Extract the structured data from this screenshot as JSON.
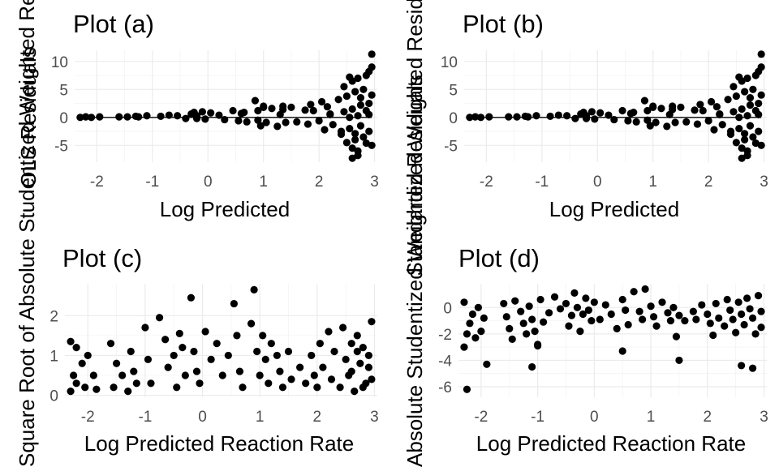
{
  "chart_data": [
    {
      "id": "a",
      "type": "scatter",
      "title": "Plot (a)",
      "xlabel": "Log Predicted",
      "ylabel": "OLS Residuals",
      "xlim": [
        -2.4,
        3.05
      ],
      "ylim": [
        -8,
        12
      ],
      "xticks": [
        -2,
        -1,
        0,
        1,
        2,
        3
      ],
      "yticks": [
        -5,
        0,
        5,
        10
      ],
      "hline": 0,
      "grid": true,
      "points_x": [
        -2.3,
        -2.2,
        -2.1,
        -1.95,
        -1.6,
        -1.45,
        -1.3,
        -1.25,
        -1.1,
        -0.85,
        -0.7,
        -0.55,
        -0.4,
        -0.3,
        -0.25,
        -0.2,
        -0.2,
        -0.1,
        -0.05,
        0.05,
        0.2,
        0.3,
        0.45,
        0.55,
        0.6,
        0.65,
        0.7,
        0.85,
        0.9,
        0.95,
        1.0,
        1.05,
        1.15,
        1.25,
        1.3,
        1.35,
        1.4,
        1.5,
        1.6,
        1.75,
        1.8,
        1.85,
        2.0,
        2.05,
        2.1,
        2.15,
        2.2,
        2.25,
        2.35,
        2.4,
        2.45,
        2.45,
        2.5,
        2.5,
        2.55,
        2.55,
        2.6,
        2.6,
        2.6,
        2.65,
        2.65,
        2.7,
        2.7,
        2.7,
        2.75,
        2.75,
        2.8,
        2.8,
        2.85,
        2.85,
        2.9,
        2.9,
        2.9,
        2.95,
        2.95,
        2.95,
        2.6,
        2.7,
        2.85,
        2.95,
        2.9,
        2.55,
        2.65,
        2.75,
        1.35,
        1.0,
        0.9,
        2.4,
        2.2,
        1.9
      ],
      "points_y": [
        0,
        0.1,
        0,
        0.1,
        0.1,
        0.1,
        0.2,
        0.1,
        0.3,
        0.2,
        0.4,
        0.3,
        -0.2,
        0.6,
        0.9,
        0.3,
        -0.2,
        1.0,
        -0.3,
        0.8,
        0.4,
        -0.4,
        1.2,
        -0.6,
        0.7,
        0.9,
        -0.8,
        3.0,
        1.2,
        -1.5,
        2.0,
        -0.9,
        1.6,
        -1.6,
        0.5,
        2.0,
        -0.9,
        1.8,
        -0.8,
        1.3,
        -1.2,
        2.3,
        -0.6,
        2.8,
        -2.2,
        1.9,
        0.5,
        -1.3,
        3.2,
        -3.0,
        5.5,
        1.0,
        -4.5,
        3.8,
        0.0,
        -2.0,
        6.5,
        1.5,
        -5.5,
        4.6,
        -2.9,
        7.0,
        0.3,
        -6.0,
        3.5,
        -1.5,
        5.0,
        -3.5,
        1.2,
        -4.6,
        8.2,
        2.5,
        -2.5,
        11.3,
        4.0,
        -5.0,
        -7.3,
        -6.8,
        7.5,
        9.0,
        0.5,
        7.2,
        -4.0,
        2.2,
        1.4,
        1.8,
        -0.5,
        -2.5,
        0.6,
        1.2
      ]
    },
    {
      "id": "b",
      "type": "scatter",
      "title": "Plot (b)",
      "xlabel": "Log Predicted",
      "ylabel": "Standardized Weighted Residuals",
      "xlim": [
        -2.4,
        3.05
      ],
      "ylim": [
        -8,
        12
      ],
      "xticks": [
        -2,
        -1,
        0,
        1,
        2,
        3
      ],
      "yticks": [
        -5,
        0,
        5,
        10
      ],
      "hline": 0,
      "grid": true,
      "points_x": [
        -2.3,
        -2.2,
        -2.1,
        -1.95,
        -1.6,
        -1.45,
        -1.3,
        -1.25,
        -1.1,
        -0.85,
        -0.7,
        -0.55,
        -0.4,
        -0.3,
        -0.25,
        -0.2,
        -0.2,
        -0.1,
        -0.05,
        0.05,
        0.2,
        0.3,
        0.45,
        0.55,
        0.6,
        0.65,
        0.7,
        0.85,
        0.9,
        0.95,
        1.0,
        1.05,
        1.15,
        1.25,
        1.3,
        1.35,
        1.4,
        1.5,
        1.6,
        1.75,
        1.8,
        1.85,
        2.0,
        2.05,
        2.1,
        2.15,
        2.2,
        2.25,
        2.35,
        2.4,
        2.45,
        2.45,
        2.5,
        2.5,
        2.55,
        2.55,
        2.6,
        2.6,
        2.6,
        2.65,
        2.65,
        2.7,
        2.7,
        2.7,
        2.75,
        2.75,
        2.8,
        2.8,
        2.85,
        2.85,
        2.9,
        2.9,
        2.9,
        2.95,
        2.95,
        2.95,
        2.6,
        2.7,
        2.85,
        2.95,
        2.9,
        2.55,
        2.65,
        2.75,
        1.35,
        1.0,
        0.9,
        2.4,
        2.2,
        1.9
      ],
      "points_y": [
        0,
        0.1,
        0,
        0.1,
        0.1,
        0.1,
        0.2,
        0.1,
        0.3,
        0.2,
        0.4,
        0.3,
        -0.2,
        0.6,
        0.9,
        0.3,
        -0.2,
        1.0,
        -0.3,
        0.8,
        0.4,
        -0.4,
        1.2,
        -0.6,
        0.7,
        0.9,
        -0.8,
        3.0,
        1.2,
        -1.5,
        2.0,
        -0.9,
        1.6,
        -1.6,
        0.5,
        2.0,
        -0.9,
        1.8,
        -0.8,
        1.3,
        -1.2,
        2.3,
        -0.6,
        2.8,
        -2.2,
        1.9,
        0.5,
        -1.3,
        3.2,
        -3.0,
        5.5,
        1.0,
        -4.5,
        3.8,
        0.0,
        -2.0,
        6.5,
        1.5,
        -5.5,
        4.6,
        -2.9,
        7.0,
        0.3,
        -6.0,
        3.5,
        -1.5,
        5.0,
        -3.5,
        1.2,
        -4.6,
        8.2,
        2.5,
        -2.5,
        11.3,
        4.0,
        -5.0,
        -7.3,
        -6.8,
        7.5,
        9.0,
        0.5,
        7.2,
        -4.0,
        2.2,
        1.4,
        1.8,
        -0.5,
        -2.5,
        0.6,
        1.2
      ]
    },
    {
      "id": "c",
      "type": "scatter",
      "title": "Plot (c)",
      "xlabel": "Log Predicted Reaction Rate",
      "ylabel": "Square Root of Absolute Studentized Weighted Residuals",
      "xlim": [
        -2.4,
        3.05
      ],
      "ylim": [
        -0.05,
        2.8
      ],
      "xticks": [
        -2,
        -1,
        0,
        1,
        2,
        3
      ],
      "yticks": [
        0,
        1,
        2
      ],
      "grid": true,
      "points_x": [
        -2.3,
        -2.3,
        -2.25,
        -2.2,
        -2.2,
        -2.1,
        -2.05,
        -2.0,
        -1.9,
        -1.85,
        -1.6,
        -1.55,
        -1.5,
        -1.4,
        -1.3,
        -1.25,
        -1.2,
        -1.15,
        -1.0,
        -0.95,
        -0.9,
        -0.75,
        -0.65,
        -0.6,
        -0.5,
        -0.45,
        -0.4,
        -0.35,
        -0.3,
        -0.2,
        -0.15,
        -0.1,
        -0.05,
        0.05,
        0.15,
        0.25,
        0.35,
        0.45,
        0.55,
        0.6,
        0.65,
        0.7,
        0.85,
        0.9,
        0.95,
        1.0,
        1.05,
        1.1,
        1.15,
        1.2,
        1.3,
        1.35,
        1.4,
        1.5,
        1.55,
        1.7,
        1.8,
        1.9,
        1.95,
        2.0,
        2.05,
        2.1,
        2.2,
        2.25,
        2.3,
        2.4,
        2.45,
        2.5,
        2.55,
        2.6,
        2.65,
        2.7,
        2.75,
        2.8,
        2.85,
        2.9,
        2.95,
        2.95,
        2.6,
        2.7,
        2.8,
        2.9
      ],
      "points_y": [
        1.35,
        0.1,
        0.5,
        1.2,
        0.3,
        0.8,
        0.2,
        1.0,
        0.5,
        0.15,
        1.3,
        0.2,
        0.8,
        0.5,
        0.1,
        1.1,
        0.6,
        0.3,
        1.7,
        0.9,
        0.3,
        1.95,
        1.4,
        0.7,
        1.0,
        0.2,
        1.55,
        1.2,
        0.5,
        2.45,
        1.1,
        0.6,
        0.3,
        1.6,
        0.9,
        1.3,
        0.5,
        1.0,
        2.3,
        1.5,
        0.6,
        0.2,
        1.8,
        2.65,
        1.1,
        0.5,
        1.5,
        0.9,
        0.3,
        1.3,
        1.0,
        0.6,
        0.2,
        1.1,
        0.4,
        0.7,
        0.3,
        1.0,
        0.5,
        0.2,
        1.3,
        0.7,
        1.6,
        0.4,
        1.1,
        0.2,
        1.7,
        0.9,
        0.5,
        1.3,
        0.1,
        1.5,
        0.8,
        1.2,
        0.3,
        1.0,
        1.85,
        0.4,
        0.6,
        1.1,
        0.2,
        0.7
      ]
    },
    {
      "id": "d",
      "type": "scatter",
      "title": "Plot (d)",
      "xlabel": "Log Predicted Reaction Rate",
      "ylabel": "Absolute Studentized Weighted Residuals",
      "xlim": [
        -2.4,
        3.05
      ],
      "ylim": [
        -6.8,
        1.8
      ],
      "xticks": [
        -2,
        -1,
        0,
        1,
        2,
        3
      ],
      "yticks": [
        -6,
        -4,
        -2,
        0
      ],
      "grid": true,
      "points_x": [
        -2.3,
        -2.3,
        -2.25,
        -2.25,
        -2.2,
        -2.15,
        -2.1,
        -2.05,
        -2.0,
        -1.95,
        -1.9,
        -1.6,
        -1.55,
        -1.5,
        -1.45,
        -1.4,
        -1.3,
        -1.25,
        -1.2,
        -1.15,
        -1.1,
        -1.05,
        -1.0,
        -0.95,
        -0.9,
        -0.8,
        -0.7,
        -0.6,
        -0.5,
        -0.45,
        -0.4,
        -0.35,
        -0.3,
        -0.25,
        -0.2,
        -0.15,
        -0.1,
        -0.05,
        0.0,
        0.1,
        0.2,
        0.3,
        0.4,
        0.5,
        0.55,
        0.6,
        0.7,
        0.8,
        0.85,
        0.9,
        1.0,
        1.05,
        1.1,
        1.2,
        1.3,
        1.35,
        1.4,
        1.45,
        1.5,
        1.6,
        1.75,
        1.8,
        1.9,
        2.0,
        2.05,
        2.1,
        2.15,
        2.2,
        2.3,
        2.35,
        2.4,
        2.45,
        2.5,
        2.55,
        2.6,
        2.65,
        2.7,
        2.75,
        2.8,
        2.85,
        2.9,
        2.95,
        2.95,
        2.6,
        2.8,
        1.5,
        0.5,
        -1.1,
        -1.0
      ],
      "points_y": [
        0.4,
        -3.0,
        -2.0,
        -6.2,
        -1.2,
        -0.5,
        -2.3,
        0.0,
        -1.8,
        -0.8,
        -4.3,
        0.3,
        -0.7,
        -1.6,
        -2.4,
        0.5,
        -0.3,
        -1.2,
        -2.0,
        0.1,
        -0.9,
        -1.8,
        -2.8,
        0.6,
        -1.1,
        -0.4,
        0.8,
        -0.1,
        0.3,
        -1.4,
        -0.6,
        1.1,
        0.0,
        -1.8,
        -0.5,
        0.7,
        -0.2,
        -1.0,
        0.4,
        -0.9,
        0.2,
        -0.5,
        -1.6,
        0.6,
        -0.2,
        -1.3,
        1.2,
        -0.3,
        -0.9,
        1.4,
        0.1,
        -0.7,
        -1.4,
        0.4,
        -0.4,
        -1.0,
        0.0,
        -2.2,
        -0.6,
        -1.0,
        -0.3,
        -0.9,
        0.2,
        -0.5,
        -1.2,
        -2.1,
        0.3,
        -0.8,
        -1.4,
        0.6,
        -0.2,
        -0.9,
        -1.9,
        0.4,
        -0.5,
        -1.3,
        0.7,
        -0.1,
        -0.8,
        -2.0,
        0.9,
        -0.3,
        -1.5,
        -4.4,
        -4.6,
        -4.0,
        -3.3,
        -4.5,
        -2.9
      ]
    }
  ]
}
